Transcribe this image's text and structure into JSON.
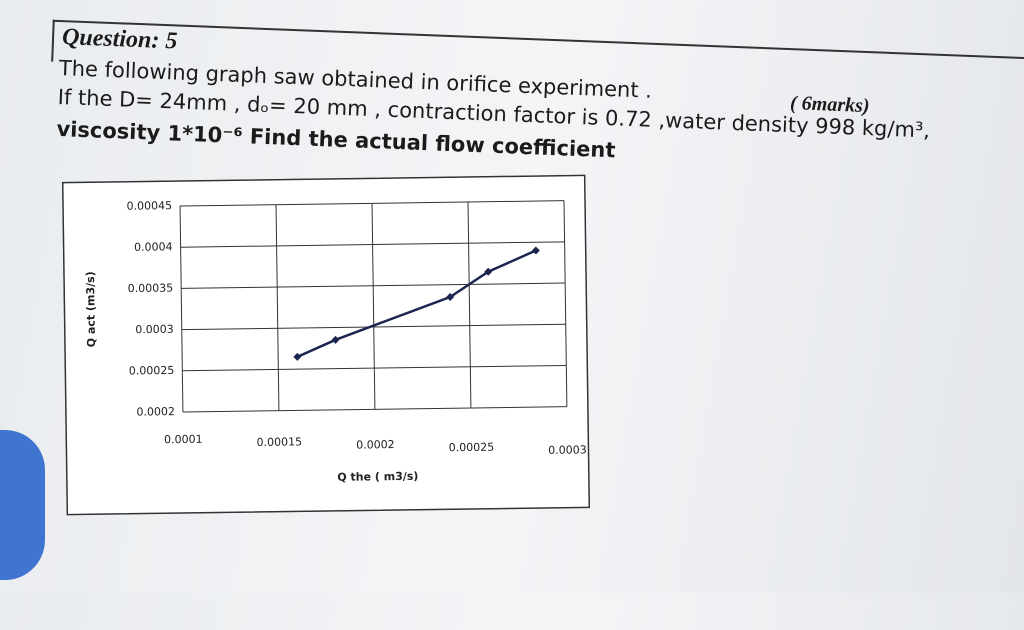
{
  "header": {
    "title": "Question: 5",
    "marks": "( 6marks)"
  },
  "question": {
    "lines": [
      "The following graph saw obtained in orifice experiment .",
      "If the D= 24mm , dₒ= 20 mm , contraction factor is 0.72 ,water density 998 kg/m³,",
      "viscosity 1*10⁻⁶ Find the actual flow coefficient"
    ]
  },
  "chart_data": {
    "type": "line",
    "x_label": "Q the ( m3/s)",
    "y_label": "Q act (m3/s)",
    "x": [
      0.00016,
      0.00018,
      0.00024,
      0.00026,
      0.000285
    ],
    "series": [
      {
        "color": "#1c2550",
        "values": [
          0.000265,
          0.000285,
          0.000335,
          0.000365,
          0.00039
        ]
      }
    ],
    "xlim": [
      0.0001,
      0.0003
    ],
    "xticks": [
      0.0001,
      0.00015,
      0.0002,
      0.00025,
      0.0003
    ],
    "ylim": [
      0.0002,
      0.00045
    ],
    "yticks": [
      0.0002,
      0.00025,
      0.0003,
      0.00035,
      0.0004,
      0.00045
    ],
    "grid": true
  }
}
